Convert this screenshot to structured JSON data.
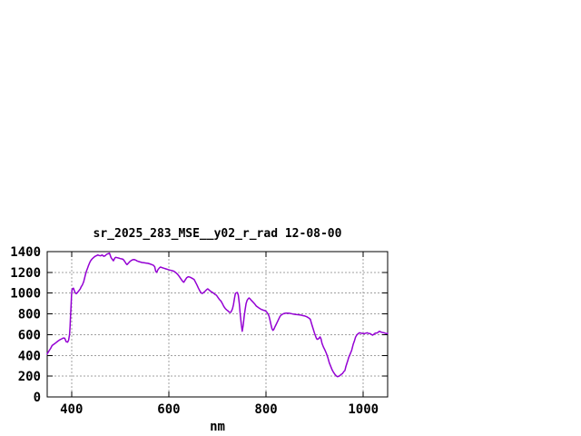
{
  "window": {
    "background": "#ffffff"
  },
  "chart_data": {
    "type": "line",
    "title": "sr_2025_283_MSE__y02_r_rad 12-08-00",
    "xlabel": "nm",
    "ylabel": "",
    "xlim": [
      350,
      1050
    ],
    "ylim": [
      0,
      1400
    ],
    "xticks": [
      400,
      600,
      800,
      1000
    ],
    "yticks": [
      0,
      200,
      400,
      600,
      800,
      1000,
      1200,
      1400
    ],
    "grid": true,
    "legend_position": "none",
    "colors": {
      "line": "#9400d3",
      "grid": "#a0a0a0",
      "axis": "#000000",
      "text": "#000000",
      "background": "#ffffff"
    },
    "series": [
      {
        "name": "sr_2025_283_MSE__y02_r_rad",
        "x": [
          350,
          353,
          357,
          360,
          364,
          368,
          372,
          376,
          380,
          383,
          386,
          389,
          392,
          394,
          396,
          397,
          398,
          399,
          400,
          401,
          402,
          404,
          406,
          408,
          410,
          412,
          415,
          418,
          420,
          422,
          425,
          427,
          429,
          431,
          433,
          435,
          437,
          439,
          441,
          443,
          446,
          448,
          451,
          454,
          457,
          460,
          463,
          466,
          469,
          472,
          475,
          478,
          481,
          483,
          486,
          489,
          491,
          494,
          497,
          500,
          503,
          506,
          509,
          512,
          514,
          517,
          520,
          523,
          526,
          529,
          532,
          535,
          538,
          541,
          545,
          549,
          553,
          557,
          561,
          565,
          568,
          571,
          573,
          575,
          578,
          581,
          583,
          586,
          590,
          594,
          598,
          602,
          606,
          610,
          614,
          618,
          622,
          626,
          629,
          631,
          634,
          637,
          640,
          643,
          646,
          649,
          652,
          655,
          658,
          661,
          664,
          667,
          669,
          672,
          675,
          678,
          680,
          683,
          686,
          689,
          692,
          695,
          698,
          701,
          704,
          707,
          710,
          713,
          716,
          719,
          722,
          725,
          727,
          729,
          731,
          733,
          735,
          737,
          739,
          741,
          743,
          745,
          747,
          749,
          751,
          753,
          755,
          757,
          759,
          761,
          763,
          765,
          767,
          769,
          771,
          774,
          777,
          780,
          783,
          786,
          789,
          792,
          795,
          798,
          801,
          804,
          806,
          808,
          810,
          812,
          814,
          816,
          818,
          820,
          823,
          826,
          829,
          832,
          835,
          838,
          841,
          844,
          848,
          852,
          856,
          860,
          864,
          868,
          872,
          876,
          880,
          884,
          888,
          891,
          894,
          897,
          900,
          903,
          905,
          908,
          911,
          913,
          915,
          918,
          921,
          924,
          927,
          930,
          933,
          936,
          939,
          942,
          945,
          947,
          949,
          951,
          954,
          957,
          960,
          962,
          964,
          966,
          968,
          970,
          973,
          976,
          979,
          982,
          984,
          986,
          988,
          990,
          992,
          994,
          996,
          999,
          1002,
          1005,
          1008,
          1011,
          1014,
          1017,
          1019,
          1022,
          1024,
          1027,
          1029,
          1031,
          1033,
          1035,
          1037,
          1040,
          1043,
          1046,
          1048,
          1050
        ],
        "y": [
          415,
          438,
          468,
          495,
          508,
          522,
          538,
          550,
          560,
          568,
          565,
          532,
          528,
          548,
          600,
          680,
          780,
          880,
          980,
          1030,
          1042,
          1047,
          1020,
          1000,
          995,
          1005,
          1022,
          1040,
          1062,
          1076,
          1110,
          1149,
          1185,
          1216,
          1242,
          1266,
          1290,
          1310,
          1322,
          1333,
          1345,
          1354,
          1360,
          1368,
          1362,
          1360,
          1368,
          1355,
          1360,
          1374,
          1380,
          1385,
          1345,
          1330,
          1312,
          1338,
          1345,
          1341,
          1338,
          1333,
          1330,
          1326,
          1308,
          1285,
          1275,
          1290,
          1305,
          1315,
          1322,
          1324,
          1318,
          1310,
          1305,
          1300,
          1295,
          1292,
          1290,
          1287,
          1282,
          1275,
          1270,
          1255,
          1212,
          1200,
          1228,
          1245,
          1251,
          1246,
          1240,
          1234,
          1228,
          1222,
          1218,
          1212,
          1200,
          1182,
          1158,
          1130,
          1110,
          1105,
          1128,
          1150,
          1158,
          1155,
          1148,
          1140,
          1132,
          1105,
          1078,
          1047,
          1020,
          1000,
          997,
          1008,
          1020,
          1034,
          1041,
          1030,
          1018,
          1010,
          1000,
          988,
          980,
          960,
          940,
          925,
          900,
          872,
          852,
          838,
          828,
          815,
          814,
          828,
          850,
          890,
          950,
          997,
          1004,
          1006,
          980,
          900,
          790,
          700,
          633,
          690,
          779,
          840,
          900,
          930,
          945,
          954,
          946,
          934,
          925,
          910,
          893,
          875,
          865,
          855,
          846,
          840,
          835,
          831,
          820,
          800,
          780,
          740,
          700,
          660,
          641,
          650,
          672,
          691,
          720,
          750,
          778,
          792,
          800,
          805,
          807,
          808,
          806,
          802,
          798,
          795,
          793,
          791,
          788,
          783,
          780,
          772,
          760,
          748,
          700,
          655,
          610,
          570,
          555,
          560,
          578,
          560,
          516,
          480,
          452,
          420,
          380,
          330,
          295,
          260,
          235,
          215,
          200,
          195,
          198,
          203,
          215,
          225,
          245,
          254,
          290,
          320,
          350,
          380,
          415,
          450,
          505,
          545,
          575,
          592,
          604,
          612,
          618,
          616,
          613,
          611,
          610,
          614,
          618,
          612,
          610,
          600,
          595,
          605,
          613,
          616,
          618,
          626,
          633,
          628,
          624,
          620,
          618,
          612,
          610,
          613
        ]
      }
    ]
  }
}
